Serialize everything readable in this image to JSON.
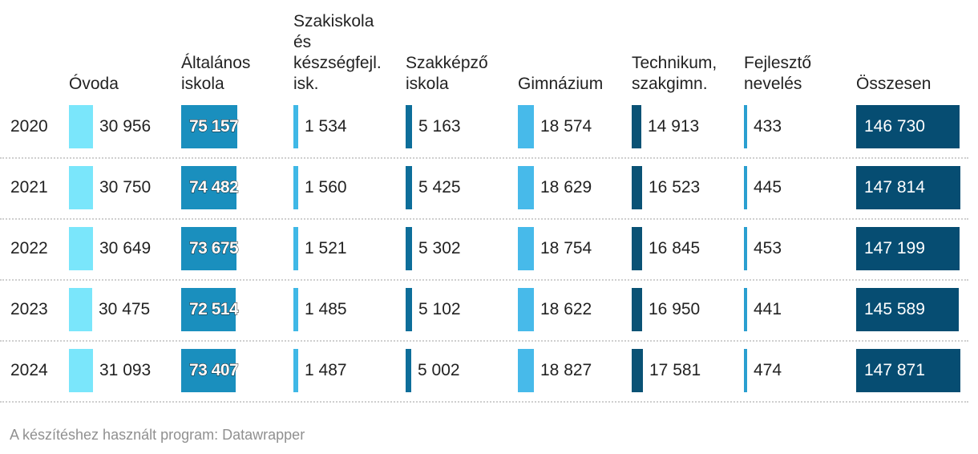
{
  "columns": [
    {
      "key": "ovoda",
      "label": "Óvoda"
    },
    {
      "key": "altalanos",
      "label": "Általános\niskola"
    },
    {
      "key": "szakiskola",
      "label": "Szakiskola\nés\nkészségfejl.\nisk."
    },
    {
      "key": "szakkepzo",
      "label": "Szakképző\niskola"
    },
    {
      "key": "gimnazium",
      "label": "Gimnázium"
    },
    {
      "key": "technikum",
      "label": "Technikum,\nszakgimn."
    },
    {
      "key": "fejleszto",
      "label": "Fejlesztő\nnevelés"
    },
    {
      "key": "osszesen",
      "label": "Összesen"
    }
  ],
  "colors": {
    "ovoda": "#7ae6fb",
    "altalanos": "#1a8fbe",
    "szakiskola": "#3fb8e6",
    "szakkepzo": "#0d6e9a",
    "gimnazium": "#47baea",
    "technikum": "#0a5275",
    "fejleszto": "#2a9fd0",
    "osszesen": "#064d72"
  },
  "chart_data": {
    "type": "table",
    "years": [
      "2020",
      "2021",
      "2022",
      "2023",
      "2024"
    ],
    "series": [
      {
        "name": "Óvoda",
        "values": [
          30956,
          30750,
          30649,
          30475,
          31093
        ]
      },
      {
        "name": "Általános iskola",
        "values": [
          75157,
          74482,
          73675,
          72514,
          73407
        ]
      },
      {
        "name": "Szakiskola és készségfejl. isk.",
        "values": [
          1534,
          1560,
          1521,
          1485,
          1487
        ]
      },
      {
        "name": "Szakképző iskola",
        "values": [
          5163,
          5425,
          5302,
          5102,
          5002
        ]
      },
      {
        "name": "Gimnázium",
        "values": [
          18574,
          18629,
          18754,
          18622,
          18827
        ]
      },
      {
        "name": "Technikum, szakgimn.",
        "values": [
          14913,
          16523,
          16845,
          16950,
          17581
        ]
      },
      {
        "name": "Fejlesztő nevelés",
        "values": [
          433,
          445,
          453,
          441,
          474
        ]
      },
      {
        "name": "Összesen",
        "values": [
          146730,
          147814,
          147199,
          145589,
          147871
        ]
      }
    ],
    "display": [
      [
        "30 956",
        "75 157",
        "1 534",
        "5 163",
        "18 574",
        "14 913",
        "433",
        "146 730"
      ],
      [
        "30 750",
        "74 482",
        "1 560",
        "5 425",
        "18 629",
        "16 523",
        "445",
        "147 814"
      ],
      [
        "30 649",
        "73 675",
        "1 521",
        "5 302",
        "18 754",
        "16 845",
        "453",
        "147 199"
      ],
      [
        "30 475",
        "72 514",
        "1 485",
        "5 102",
        "18 622",
        "16 950",
        "441",
        "145 589"
      ],
      [
        "31 093",
        "73 407",
        "1 487",
        "5 002",
        "18 827",
        "17 581",
        "474",
        "147 871"
      ]
    ]
  },
  "footer": "A készítéshez használt program: Datawrapper"
}
